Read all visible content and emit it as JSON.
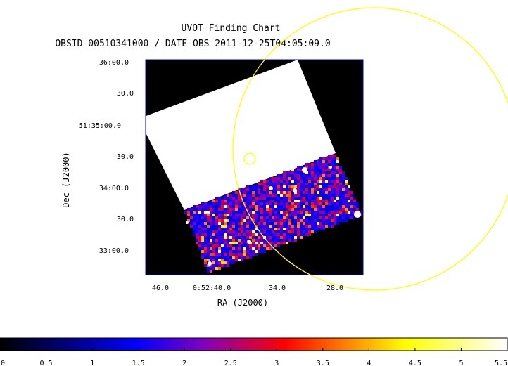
{
  "chart_data": {
    "type": "heatmap",
    "title": "UVOT Finding Chart",
    "subtitle": "OBSID 00510341000 / DATE-OBS 2011-12-25T04:05:09.0",
    "xlabel": "RA (J2000)",
    "ylabel": "Dec (J2000)",
    "x_ticks": [
      "46.0",
      "0:52:40.0",
      "34.0",
      "28.0"
    ],
    "y_ticks": [
      "36:00.0",
      "30.0",
      "51:35:00.0",
      "30.0",
      "34:00.0",
      "30.0",
      "33:00.0"
    ],
    "colorbar": {
      "range": [
        0,
        5.5
      ],
      "ticks": [
        "0",
        "0.5",
        "1",
        "1.5",
        "2",
        "2.5",
        "3",
        "3.5",
        "4",
        "4.5",
        "5",
        "5.5"
      ],
      "colors": [
        "#000000",
        "#0000ff",
        "#8000c0",
        "#ff0000",
        "#ffff00",
        "#ffffff"
      ]
    },
    "overlays": [
      {
        "shape": "circle",
        "label": "large error circle",
        "color": "#ffff00"
      },
      {
        "shape": "circle",
        "label": "small error circle",
        "color": "#ffff00"
      }
    ],
    "image_colors": {
      "background": "#000000",
      "saturated": "#ffffff",
      "frame": "#0000cc"
    }
  }
}
